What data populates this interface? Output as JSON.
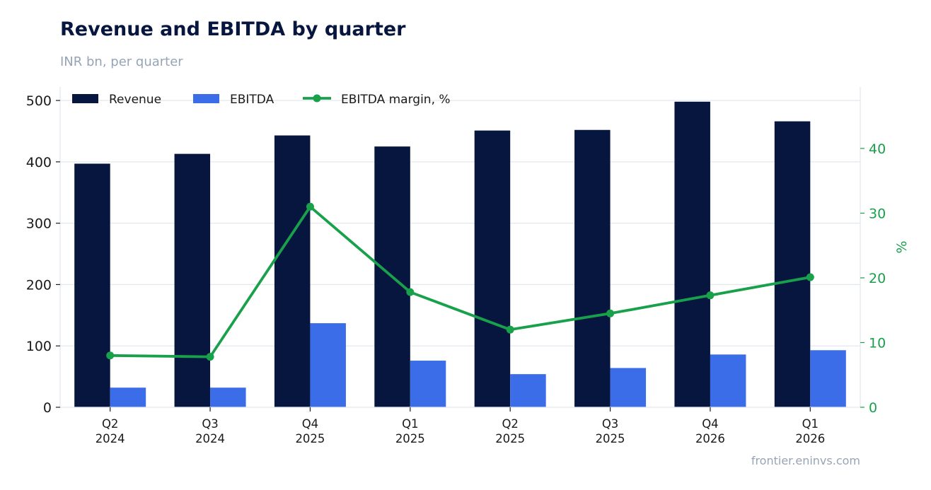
{
  "header": {
    "title": "Revenue and EBITDA by quarter",
    "subtitle": "INR bn, per quarter"
  },
  "footer": {
    "source": "frontier.eninvs.com"
  },
  "colors": {
    "revenue": "#06163f",
    "ebitda": "#3b6de8",
    "margin": "#18a04a",
    "grid": "#e3e8ef",
    "axis_text": "#1a1a1a",
    "muted": "#97a4b6"
  },
  "chart_data": {
    "type": "bar",
    "categories": [
      [
        "Q2",
        "2024"
      ],
      [
        "Q3",
        "2024"
      ],
      [
        "Q4",
        "2025"
      ],
      [
        "Q1",
        "2025"
      ],
      [
        "Q2",
        "2025"
      ],
      [
        "Q3",
        "2025"
      ],
      [
        "Q4",
        "2026"
      ],
      [
        "Q1",
        "2026"
      ]
    ],
    "series": [
      {
        "name": "Revenue",
        "kind": "bar",
        "axis": "left",
        "values": [
          397,
          413,
          443,
          425,
          451,
          452,
          498,
          466
        ]
      },
      {
        "name": "EBITDA",
        "kind": "bar",
        "axis": "left",
        "values": [
          32,
          32,
          137,
          76,
          54,
          64,
          86,
          93
        ]
      },
      {
        "name": "EBITDA margin, %",
        "kind": "line",
        "axis": "right",
        "values": [
          8.0,
          7.8,
          31.0,
          17.8,
          12.0,
          14.5,
          17.3,
          20.1
        ]
      }
    ],
    "y_left": {
      "ylim": [
        0,
        522
      ],
      "ticks": [
        0,
        100,
        200,
        300,
        400,
        500
      ]
    },
    "y_right": {
      "label": "%",
      "ylim": [
        0,
        49.5
      ],
      "ticks": [
        0,
        10,
        20,
        30,
        40
      ]
    },
    "grid": true,
    "legend": {
      "position": "top-left"
    }
  }
}
